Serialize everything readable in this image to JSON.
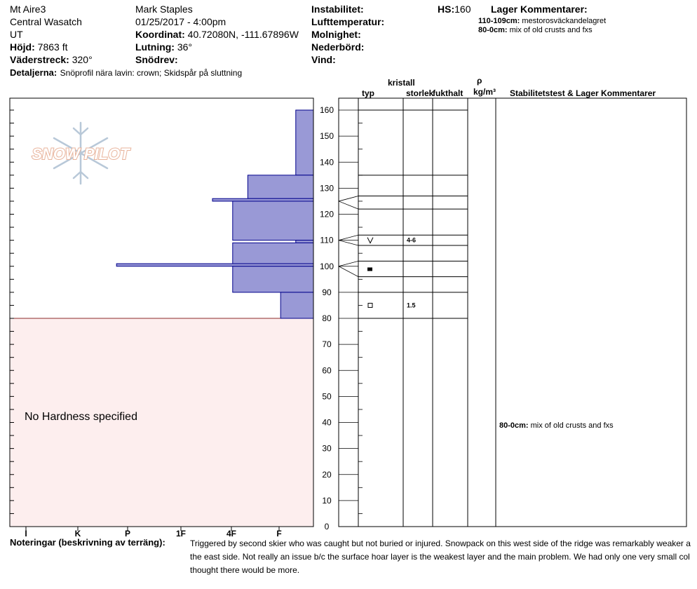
{
  "header": {
    "location": "Mt Aire3",
    "range": "Central Wasatch",
    "state": "UT",
    "elevation_label": "Höjd:",
    "elevation_value": "7863 ft",
    "aspect_label": "Väderstreck:",
    "aspect_value": "320°",
    "details_label": "Detaljerna:",
    "details_value": "Snöprofil nära lavin: crown; Skidspår på sluttning",
    "observer": "Mark Staples",
    "datetime": "01/25/2017 - 4:00pm",
    "coord_label": "Koordinat:",
    "coord_value": "40.72080N, -111.67896W",
    "slope_label": "Lutning:",
    "slope_value": "36°",
    "drift_label": "Snödrev:",
    "instability_label": "Instabilitet:",
    "air_temp_label": "Lufttemperatur:",
    "clouds_label": "Molnighet:",
    "precip_label": "Nederbörd:",
    "wind_label": "Vind:",
    "hs_label": "HS:",
    "hs_value": "160",
    "layer_comments_title": "Lager Kommentarer:",
    "layer_comments": [
      {
        "depth": "110-109cm:",
        "text": "mestorosväckandelagret"
      },
      {
        "depth": "80-0cm:",
        "text": "mix of old crusts and fxs"
      }
    ]
  },
  "logo_text": "SNOW PILOT",
  "no_hardness_text": "No Hardness specified",
  "columns": {
    "type": "typ",
    "crystal": "kristall",
    "size": "storlek",
    "moisture": "fukthalt",
    "rho": "ρ",
    "rho_unit": "kg/m³",
    "stability": "Stabilitetstest & Lager Kommentarer"
  },
  "stability_comment": {
    "depth": "80-0cm:",
    "text": "mix of old crusts and fxs"
  },
  "notes": {
    "label": "Noteringar (beskrivning av terräng):",
    "lines": [
      "Triggered by second skier who was caught but not buried or injured. Snowpack on this west side of the ridge was remarkably weaker a",
      "the east side. Not really an issue b/c the surface hoar layer is the weakest layer and the main problem. We had only one very small col",
      "thought there would be more."
    ]
  },
  "chart_data": {
    "type": "snow-profile",
    "depth_unit": "cm",
    "depth_range": [
      0,
      160
    ],
    "depth_ticks": [
      0,
      10,
      20,
      30,
      40,
      50,
      60,
      70,
      80,
      90,
      100,
      110,
      120,
      130,
      140,
      150,
      160
    ],
    "hardness_scale": [
      "I",
      "K",
      "P",
      "1F",
      "4F",
      "F"
    ],
    "hardness_layers": [
      {
        "top": 160,
        "bottom": 135,
        "hardness_index": 0.35
      },
      {
        "top": 135,
        "bottom": 126,
        "hardness_index": 1.3
      },
      {
        "top": 126,
        "bottom": 125,
        "hardness_index": 2.0
      },
      {
        "top": 125,
        "bottom": 110,
        "hardness_index": 1.6
      },
      {
        "top": 110,
        "bottom": 109,
        "hardness_index": 0.35
      },
      {
        "top": 109,
        "bottom": 101,
        "hardness_index": 1.6
      },
      {
        "top": 101,
        "bottom": 100,
        "hardness_index": 3.9
      },
      {
        "top": 100,
        "bottom": 90,
        "hardness_index": 1.6
      },
      {
        "top": 90,
        "bottom": 80,
        "hardness_index": 0.65
      }
    ],
    "layer_boundaries": [
      160,
      135,
      127,
      122,
      112,
      108,
      102,
      96,
      90,
      80
    ],
    "grain_marks": [
      {
        "depth": 110,
        "symbol": "V",
        "size": "4-6"
      },
      {
        "depth": 99,
        "symbol": "filled-square",
        "size": ""
      },
      {
        "depth": 85,
        "symbol": "open-square",
        "size": "1.5"
      }
    ]
  },
  "colors": {
    "hardness_fill": "#9999d6",
    "hardness_stroke": "#00008b",
    "unspecified_fill": "#fdeeee",
    "unspecified_border": "#8b2a2a",
    "logo": "#e8b39b",
    "flake": "#b8c8d8"
  }
}
